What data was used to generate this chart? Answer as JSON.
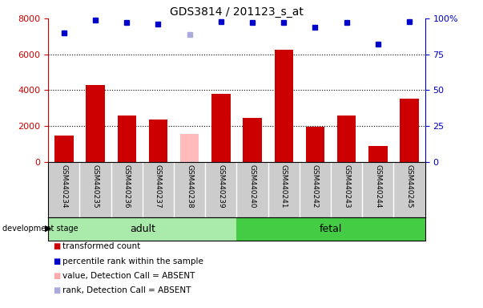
{
  "title": "GDS3814 / 201123_s_at",
  "samples": [
    "GSM440234",
    "GSM440235",
    "GSM440236",
    "GSM440237",
    "GSM440238",
    "GSM440239",
    "GSM440240",
    "GSM440241",
    "GSM440242",
    "GSM440243",
    "GSM440244",
    "GSM440245"
  ],
  "bar_values": [
    1450,
    4300,
    2600,
    2350,
    1550,
    3800,
    2450,
    6250,
    1950,
    2600,
    900,
    3500
  ],
  "bar_colors": [
    "#cc0000",
    "#cc0000",
    "#cc0000",
    "#cc0000",
    "#ffbbbb",
    "#cc0000",
    "#cc0000",
    "#cc0000",
    "#cc0000",
    "#cc0000",
    "#cc0000",
    "#cc0000"
  ],
  "rank_values": [
    90,
    99,
    97,
    96,
    89,
    98,
    97,
    97,
    94,
    97,
    82,
    98
  ],
  "rank_colors": [
    "#0000cc",
    "#0000cc",
    "#0000cc",
    "#0000cc",
    "#aaaadd",
    "#0000cc",
    "#0000cc",
    "#0000cc",
    "#0000cc",
    "#0000cc",
    "#0000cc",
    "#0000cc"
  ],
  "absent_index": 4,
  "adult_indices": [
    0,
    1,
    2,
    3,
    4,
    5
  ],
  "fetal_indices": [
    6,
    7,
    8,
    9,
    10,
    11
  ],
  "adult_label": "adult",
  "fetal_label": "fetal",
  "ylim_left": [
    0,
    8000
  ],
  "ylim_right": [
    0,
    100
  ],
  "yticks_left": [
    0,
    2000,
    4000,
    6000,
    8000
  ],
  "yticks_right": [
    0,
    25,
    50,
    75,
    100
  ],
  "ytick_labels_right": [
    "0",
    "25",
    "50",
    "75",
    "100%"
  ],
  "left_axis_color": "#cc0000",
  "right_axis_color": "#0000cc",
  "background_color": "#ffffff",
  "panel_bg": "#cccccc",
  "adult_color": "#aaeaaa",
  "fetal_color": "#44cc44",
  "dev_stage_text": "development stage",
  "legend": [
    {
      "label": "transformed count",
      "color": "#cc0000"
    },
    {
      "label": "percentile rank within the sample",
      "color": "#0000cc"
    },
    {
      "label": "value, Detection Call = ABSENT",
      "color": "#ffaaaa"
    },
    {
      "label": "rank, Detection Call = ABSENT",
      "color": "#aaaadd"
    }
  ]
}
